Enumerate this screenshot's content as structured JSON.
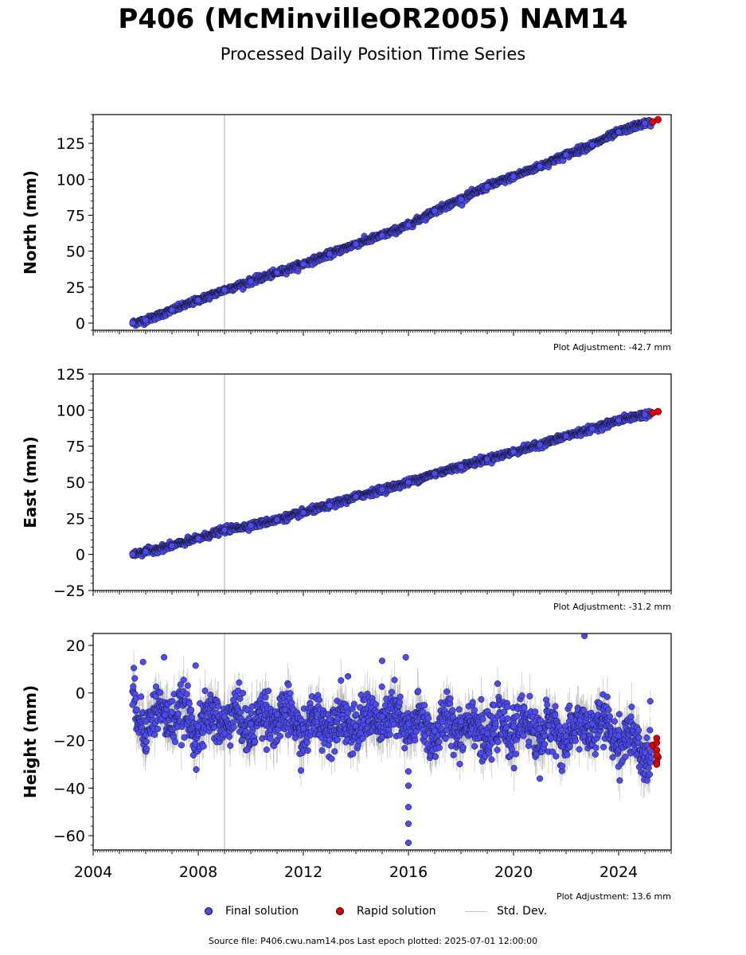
{
  "title": "P406 (McMinvilleOR2005) NAM14",
  "subtitle": "Processed Daily Position Time Series",
  "legend": {
    "final_label": "Final solution",
    "rapid_label": "Rapid solution",
    "std_label": "Std. Dev."
  },
  "colors": {
    "final": "#4b4bf0",
    "rapid": "#e00000",
    "std": "#9a9a9a",
    "outage_line": "#c8c8c8"
  },
  "footer": "Source file: P406.cwu.nam14.pos  Last epoch plotted: 2025-07-01 12:00:00",
  "chart_data": [
    {
      "type": "scatter",
      "ylabel": "North (mm)",
      "adjustment": "Plot Adjustment: -42.7 mm",
      "xlim": [
        2004,
        2026
      ],
      "ylim": [
        -5,
        145
      ],
      "yticks": [
        0,
        25,
        50,
        75,
        100,
        125
      ],
      "ytick_labels": [
        "0",
        "25",
        "50",
        "75",
        "100",
        "125"
      ],
      "vline_x": 2009.0,
      "series": [
        {
          "name": "Final solution",
          "x": [
            2005.5,
            2006.0,
            2007.0,
            2008.0,
            2009.0,
            2010.0,
            2011.0,
            2012.0,
            2013.0,
            2014.0,
            2015.0,
            2016.0,
            2017.0,
            2018.0,
            2019.0,
            2020.0,
            2021.0,
            2022.0,
            2023.0,
            2024.0,
            2025.0
          ],
          "y": [
            0,
            2,
            9,
            16,
            23,
            29,
            35,
            41,
            48,
            55,
            61,
            68,
            78,
            86,
            95,
            102,
            109,
            117,
            124,
            133,
            139
          ]
        },
        {
          "name": "Rapid solution",
          "x": [
            2025.3,
            2025.5
          ],
          "y": [
            140,
            141.5
          ]
        }
      ]
    },
    {
      "type": "scatter",
      "ylabel": "East (mm)",
      "adjustment": "Plot Adjustment: -31.2 mm",
      "xlim": [
        2004,
        2026
      ],
      "ylim": [
        -25,
        125
      ],
      "yticks": [
        -25,
        0,
        25,
        50,
        75,
        100,
        125
      ],
      "ytick_labels": [
        "−25",
        "0",
        "25",
        "50",
        "75",
        "100",
        "125"
      ],
      "vline_x": 2009.0,
      "series": [
        {
          "name": "Final solution",
          "x": [
            2005.5,
            2006.0,
            2007.0,
            2008.0,
            2009.0,
            2010.0,
            2011.0,
            2012.0,
            2013.0,
            2014.0,
            2015.0,
            2016.0,
            2017.0,
            2018.0,
            2019.0,
            2020.0,
            2021.0,
            2022.0,
            2023.0,
            2024.0,
            2025.0
          ],
          "y": [
            0,
            2,
            6,
            11,
            17,
            20,
            24,
            29,
            34,
            40,
            45,
            50,
            56,
            61,
            66,
            71,
            76,
            82,
            87,
            93,
            97
          ]
        },
        {
          "name": "Rapid solution",
          "x": [
            2025.3,
            2025.5
          ],
          "y": [
            98,
            99
          ]
        }
      ]
    },
    {
      "type": "scatter",
      "ylabel": "Height (mm)",
      "adjustment": "Plot Adjustment: 13.6 mm",
      "xlim": [
        2004,
        2026
      ],
      "ylim": [
        -66,
        25
      ],
      "yticks": [
        -60,
        -40,
        -20,
        0,
        20
      ],
      "ytick_labels": [
        "−60",
        "−40",
        "−20",
        "0",
        "20"
      ],
      "xticks": [
        2004,
        2008,
        2012,
        2016,
        2020,
        2024
      ],
      "xtick_labels": [
        "2004",
        "2008",
        "2012",
        "2016",
        "2020",
        "2024"
      ],
      "vline_x": 2009.0,
      "series": [
        {
          "name": "Final solution",
          "x": [
            2005.5,
            2006.0,
            2007.0,
            2008.0,
            2009.0,
            2010.0,
            2011.0,
            2012.0,
            2013.0,
            2014.0,
            2015.0,
            2016.0,
            2017.0,
            2018.0,
            2019.0,
            2020.0,
            2021.0,
            2022.0,
            2023.0,
            2024.0,
            2025.0
          ],
          "y": [
            -5,
            -12,
            -8,
            -14,
            -10,
            -13,
            -9,
            -15,
            -11,
            -14,
            -10,
            -13,
            -16,
            -12,
            -17,
            -14,
            -15,
            -18,
            -13,
            -18,
            -25
          ]
        },
        {
          "name": "Rapid solution",
          "x": [
            2025.3,
            2025.5
          ],
          "y": [
            -22,
            -27
          ]
        }
      ],
      "outliers": [
        {
          "x": 2005.9,
          "y": 13
        },
        {
          "x": 2006.7,
          "y": 15
        },
        {
          "x": 2007.9,
          "y": 11.5
        },
        {
          "x": 2013.7,
          "y": 7
        },
        {
          "x": 2015.0,
          "y": 13.5
        },
        {
          "x": 2015.9,
          "y": 15
        },
        {
          "x": 2016.0,
          "y": -33
        },
        {
          "x": 2016.0,
          "y": -39
        },
        {
          "x": 2016.0,
          "y": -48
        },
        {
          "x": 2016.0,
          "y": -55
        },
        {
          "x": 2016.0,
          "y": -63
        },
        {
          "x": 2021.0,
          "y": -36
        },
        {
          "x": 2022.7,
          "y": 24
        }
      ]
    }
  ]
}
